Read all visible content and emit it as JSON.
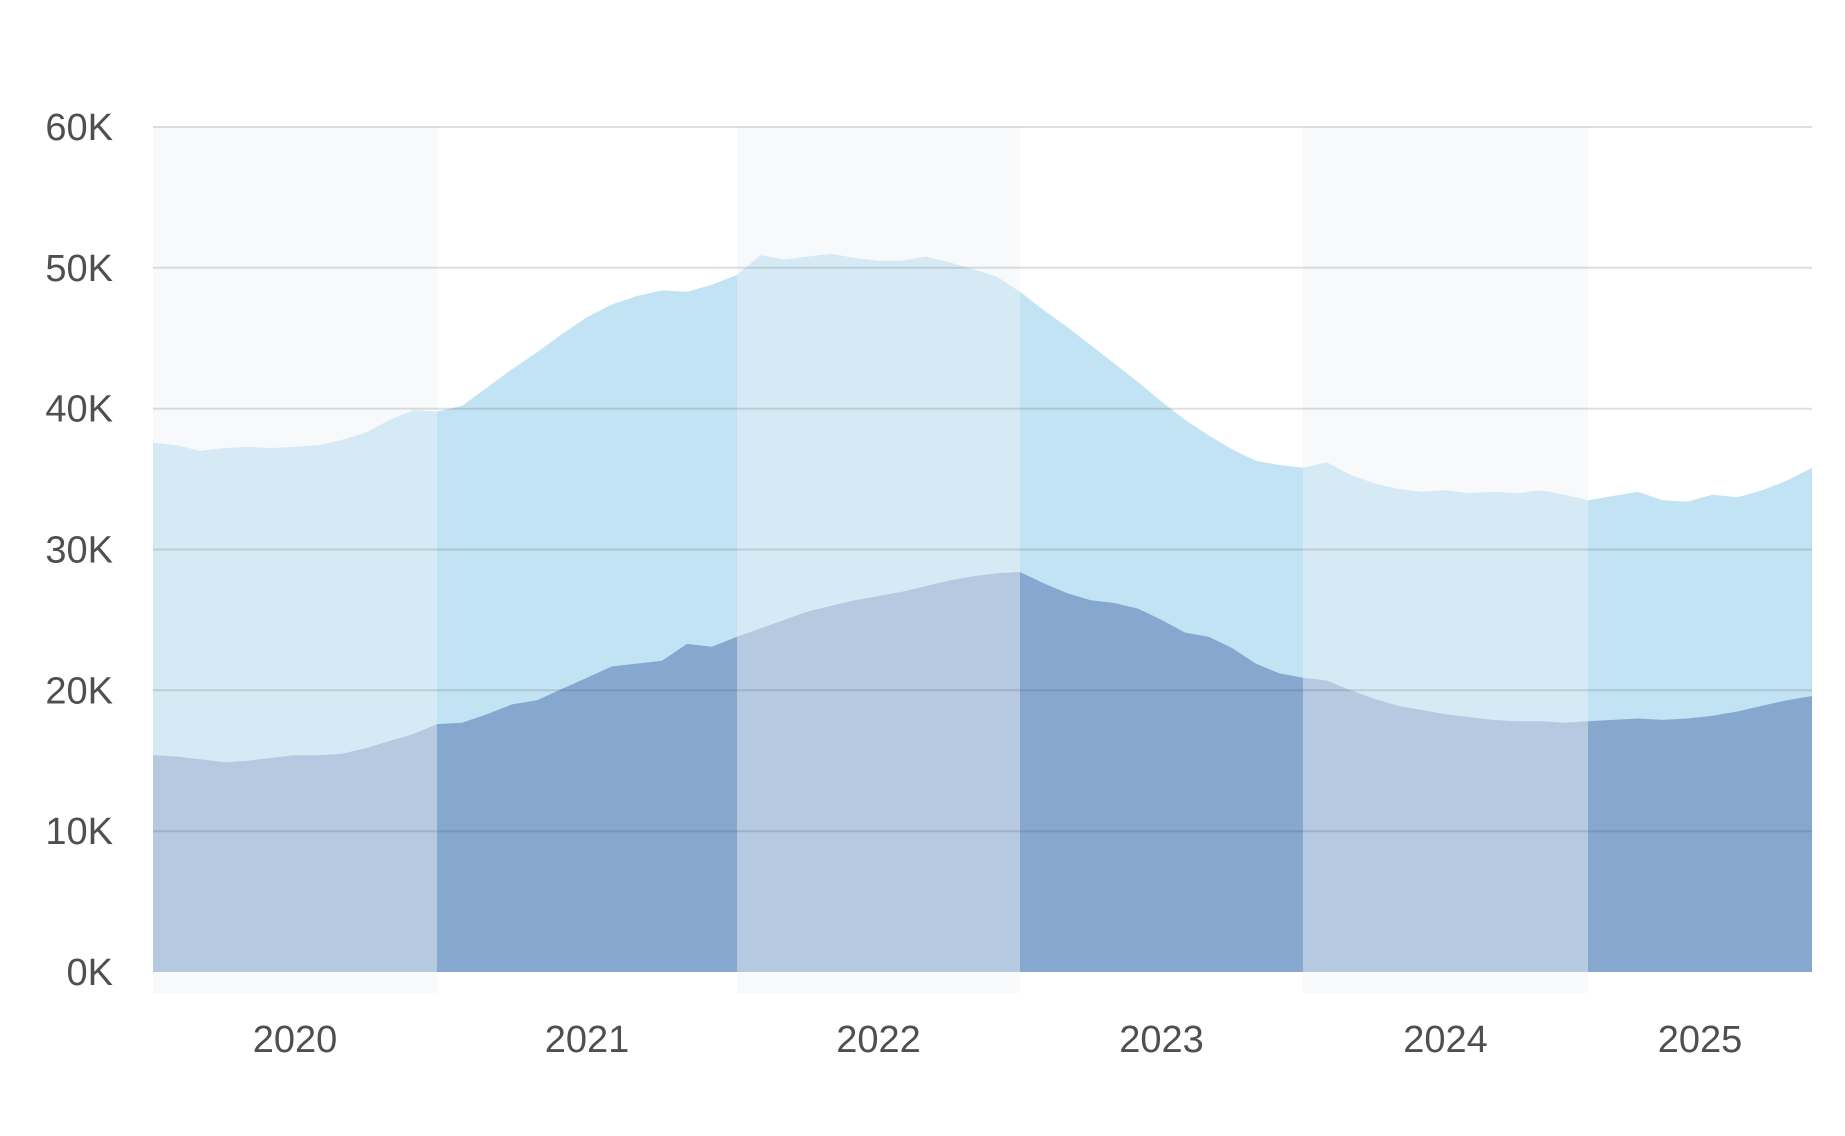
{
  "chart_data": {
    "type": "area",
    "title": "",
    "xlabel": "",
    "ylabel": "",
    "x_resolution": "monthly",
    "x_start": "2020-01",
    "x_end": "2025-10",
    "x_tick_labels": [
      "2020",
      "2021",
      "2022",
      "2023",
      "2024",
      "2025"
    ],
    "y_tick_labels": [
      "0K",
      "10K",
      "20K",
      "30K",
      "40K",
      "50K",
      "60K"
    ],
    "y_tick_values_k": [
      0,
      10,
      20,
      30,
      40,
      50,
      60
    ],
    "ylim_k": [
      0,
      60
    ],
    "grid": "horizontal",
    "legend": "none",
    "series": [
      {
        "name": "upper-light-blue-area",
        "color": "#c2e3f4",
        "values_k": [
          37.6,
          37.4,
          37.0,
          37.2,
          37.3,
          37.2,
          37.3,
          37.4,
          37.8,
          38.3,
          39.2,
          39.9,
          39.8,
          40.2,
          41.5,
          42.8,
          44.0,
          45.3,
          46.5,
          47.4,
          48.0,
          48.4,
          48.3,
          48.8,
          49.5,
          50.9,
          50.6,
          50.8,
          51.0,
          50.7,
          50.5,
          50.5,
          50.8,
          50.4,
          49.9,
          49.4,
          48.3,
          47.0,
          45.8,
          44.5,
          43.2,
          41.9,
          40.5,
          39.2,
          38.1,
          37.1,
          36.3,
          36.0,
          35.8,
          36.2,
          35.3,
          34.7,
          34.3,
          34.1,
          34.2,
          34.0,
          34.1,
          34.0,
          34.2,
          33.9,
          33.5,
          33.8,
          34.1,
          33.5,
          33.4,
          33.9,
          33.7,
          34.2,
          34.9,
          35.8
        ]
      },
      {
        "name": "lower-dark-blue-area",
        "color": "#86a8cf",
        "values_k": [
          15.4,
          15.3,
          15.1,
          14.9,
          15.0,
          15.2,
          15.4,
          15.4,
          15.5,
          15.9,
          16.4,
          16.9,
          17.6,
          17.7,
          18.3,
          19.0,
          19.3,
          20.1,
          20.9,
          21.7,
          21.9,
          22.1,
          23.3,
          23.1,
          23.8,
          24.4,
          25.0,
          25.6,
          26.0,
          26.4,
          26.7,
          27.0,
          27.4,
          27.8,
          28.1,
          28.3,
          28.4,
          27.6,
          26.9,
          26.4,
          26.2,
          25.8,
          25.0,
          24.1,
          23.8,
          23.0,
          21.9,
          21.2,
          20.9,
          20.7,
          20.0,
          19.4,
          18.9,
          18.6,
          18.3,
          18.1,
          17.9,
          17.8,
          17.8,
          17.7,
          17.8,
          17.9,
          18.0,
          17.9,
          18.0,
          18.2,
          18.5,
          18.9,
          19.3,
          19.6
        ]
      }
    ],
    "band_overlay": {
      "years_lightened": [
        "2020",
        "2022",
        "2024"
      ],
      "overlay_color": "rgba(240,241,246,0.45)"
    },
    "colors": {
      "background": "#ffffff",
      "gridline": "rgba(55,55,55,0.16)",
      "axis_label": "#4f4f4f"
    }
  }
}
